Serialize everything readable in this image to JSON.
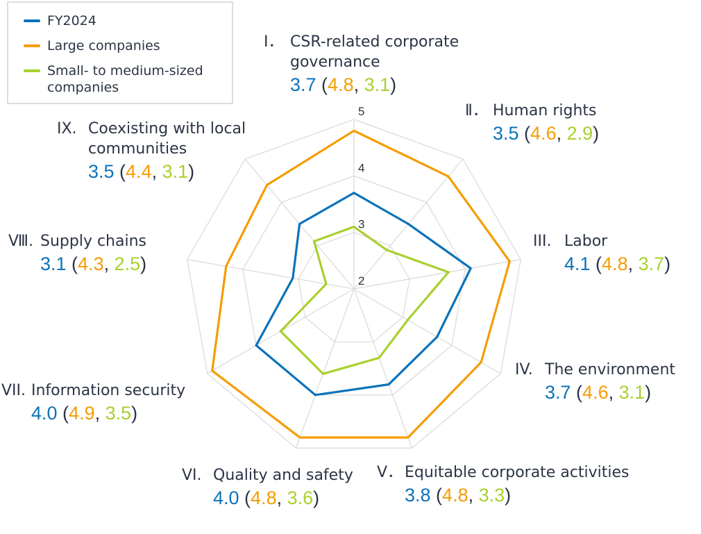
{
  "chart_data": {
    "type": "radar",
    "categories": [
      {
        "numeral": "Ⅰ．",
        "label": "CSR-related corporate governance"
      },
      {
        "numeral": "Ⅱ．",
        "label": "Human rights"
      },
      {
        "numeral": "III.",
        "label": "Labor"
      },
      {
        "numeral": "IV.",
        "label": "The environment"
      },
      {
        "numeral": "V．",
        "label": "Equitable corporate activities"
      },
      {
        "numeral": "VI.",
        "label": "Quality and safety"
      },
      {
        "numeral": "VII.",
        "label": "Information security"
      },
      {
        "numeral": "Ⅷ.",
        "label": "Supply chains"
      },
      {
        "numeral": "IX.",
        "label": "Coexisting with local communities"
      }
    ],
    "series": [
      {
        "name": "FY2024",
        "color": "#0b72b9",
        "values": [
          3.7,
          3.5,
          4.1,
          3.7,
          3.8,
          4.0,
          4.0,
          3.1,
          3.5
        ]
      },
      {
        "name": "Large companies",
        "color": "#f59c00",
        "values": [
          4.8,
          4.6,
          4.8,
          4.6,
          4.8,
          4.8,
          4.9,
          4.3,
          4.4
        ]
      },
      {
        "name": "Small- to medium-sized companies",
        "color": "#a9d02e",
        "values": [
          3.1,
          2.9,
          3.7,
          3.1,
          3.3,
          3.6,
          3.5,
          2.5,
          3.1
        ]
      }
    ],
    "r_range": [
      2,
      5
    ],
    "r_ticks": [
      "2",
      "3",
      "4",
      "5"
    ],
    "grid": true,
    "legend_position": "top-left",
    "text_color": "#2b3445",
    "grid_color": "#d9d9d9"
  }
}
